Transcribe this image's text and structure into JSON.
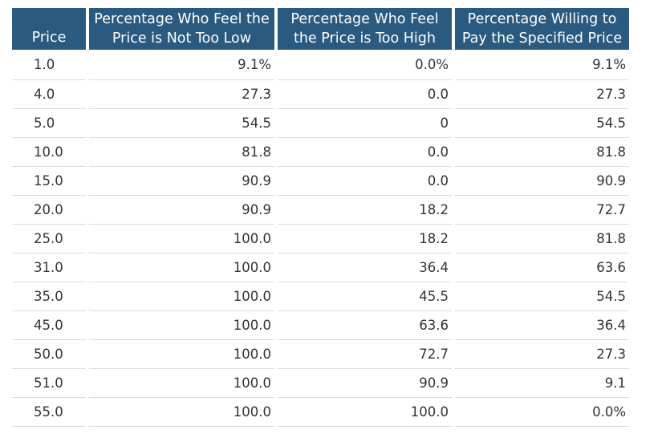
{
  "chart_data": {
    "type": "table",
    "columns": [
      "Price",
      "Percentage Who Feel the Price is Not Too Low",
      "Percentage Who Feel the Price is Too High",
      "Percentage Willing to Pay the Specified Price"
    ],
    "rows": [
      [
        "1.0",
        "9.1%",
        "0.0%",
        "9.1%"
      ],
      [
        "4.0",
        "27.3",
        "0.0",
        "27.3"
      ],
      [
        "5.0",
        "54.5",
        "0",
        "54.5"
      ],
      [
        "10.0",
        "81.8",
        "0.0",
        "81.8"
      ],
      [
        "15.0",
        "90.9",
        "0.0",
        "90.9"
      ],
      [
        "20.0",
        "90.9",
        "18.2",
        "72.7"
      ],
      [
        "25.0",
        "100.0",
        "18.2",
        "81.8"
      ],
      [
        "31.0",
        "100.0",
        "36.4",
        "63.6"
      ],
      [
        "35.0",
        "100.0",
        "45.5",
        "54.5"
      ],
      [
        "45.0",
        "100.0",
        "63.6",
        "36.4"
      ],
      [
        "50.0",
        "100.0",
        "72.7",
        "27.3"
      ],
      [
        "51.0",
        "100.0",
        "90.9",
        "9.1"
      ],
      [
        "55.0",
        "100.0",
        "100.0",
        "0.0%"
      ]
    ]
  },
  "colors": {
    "header_bg": "#2a5a7f",
    "header_text": "#ffffff",
    "row_divider": "#dcdcdc",
    "body_text": "#333333"
  }
}
